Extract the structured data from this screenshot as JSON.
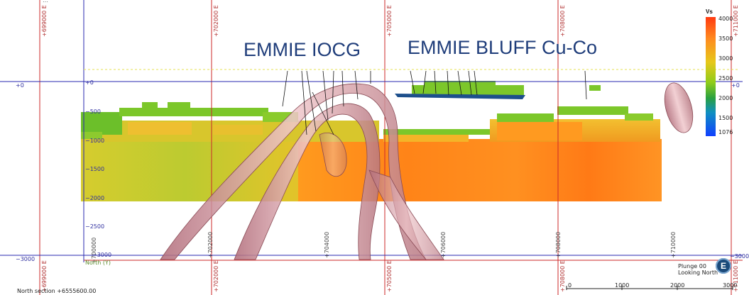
{
  "view": {
    "top_cut_text": "…",
    "titles": {
      "left": "EMMIE IOCG",
      "right": "EMMIE BLUFF Cu-Co"
    },
    "easting_labels_top": [
      "+699000 E",
      "+702000 E",
      "+705000 E",
      "+708000 E",
      "+711000 E"
    ],
    "easting_labels_bottom": [
      "+699000 E",
      "+702000 E",
      "+705000 E",
      "+708000 E",
      "+711000 E"
    ],
    "northing_inner_labels": [
      "+700000",
      "+702000",
      "+704000",
      "+706000",
      "+708000",
      "+710000"
    ],
    "depth_labels": [
      "+0",
      "−500",
      "−1000",
      "−1500",
      "−2000",
      "−2500",
      "−3000"
    ],
    "left_axis_labels": [
      "+0",
      "−3000"
    ],
    "right_axis_labels": [
      "+0",
      "−3000"
    ],
    "axis_north_label": "North (Y)",
    "section_label": "North section +6555600.00",
    "plunge_line1": "Plunge 00",
    "plunge_line2": "Looking North",
    "compass_letter": "E",
    "scale_labels": [
      "0",
      "1000",
      "2000",
      "3000"
    ]
  },
  "legend": {
    "title": "Vs",
    "ticks": [
      "4000",
      "3500",
      "3000",
      "2500",
      "2000",
      "1500",
      "1076"
    ]
  },
  "colors": {
    "grid_red": "#cc2a2a",
    "grid_blue": "#2a2ab0",
    "green": "#7cc72a",
    "yellow": "#d4cc2a",
    "orange": "#ff8a1a",
    "shell": "#c98a92"
  }
}
